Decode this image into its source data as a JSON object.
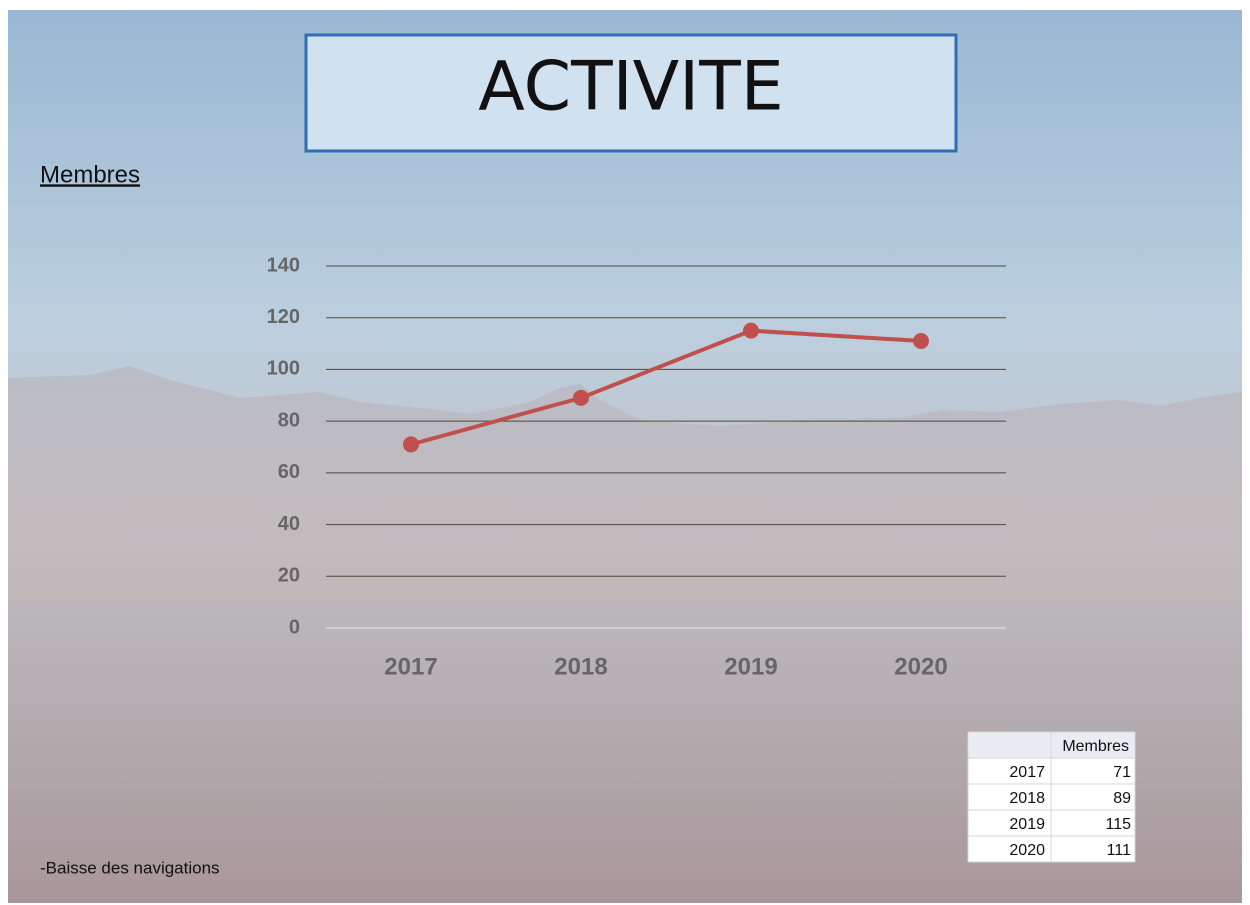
{
  "title": "ACTIVITE",
  "subtitle": "Membres",
  "chart_data": {
    "type": "line",
    "categories": [
      "2017",
      "2018",
      "2019",
      "2020"
    ],
    "values": [
      71,
      89,
      115,
      111
    ],
    "color": "#c0504d",
    "ylim": [
      0,
      140
    ],
    "yticks": [
      0,
      20,
      40,
      60,
      80,
      100,
      120,
      140
    ],
    "grid": true
  },
  "table": {
    "column": "Membres",
    "rows": [
      [
        "2017",
        71
      ],
      [
        "2018",
        89
      ],
      [
        "2019",
        115
      ],
      [
        "2020",
        111
      ]
    ]
  },
  "note": "-Baisse des navigations"
}
